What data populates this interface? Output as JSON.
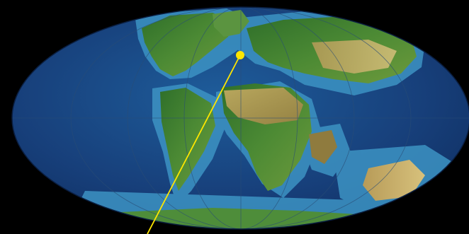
{
  "map": {
    "projection": "mollweide",
    "background_color": "#000000",
    "ocean_deep_color": "#123a73",
    "ocean_shelf_color": "#4a9fc8",
    "land_lowland_color": "#3f7f2c",
    "land_upland_color": "#b8a05a",
    "land_highland_color": "#8a6b3a",
    "graticule_color": "#2a4d76",
    "marker": {
      "type": "point",
      "color": "#ffe600",
      "label": ""
    },
    "leader_line": {
      "color": "#ffe600"
    }
  }
}
